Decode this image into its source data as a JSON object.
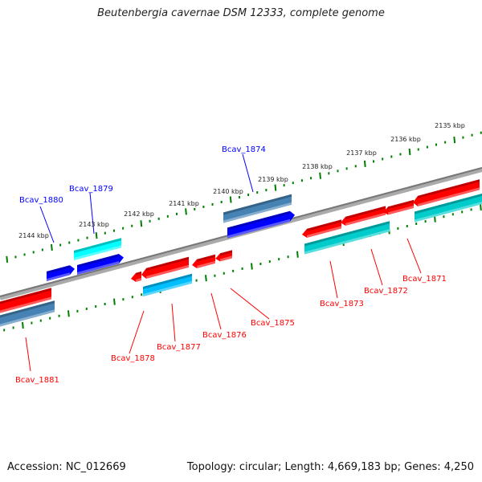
{
  "title": "Beutenbergia cavernae DSM 12333, complete genome",
  "footer": {
    "accession": "Accession: NC_012669",
    "topology": "Topology: circular; Length: 4,669,183 bp; Genes: 4,250"
  },
  "kbp_labels": [
    "2144 kbp",
    "2143 kbp",
    "2142 kbp",
    "2141 kbp",
    "2140 kbp",
    "2139 kbp",
    "2138 kbp",
    "2137 kbp",
    "2136 kbp",
    "2135 kbp"
  ],
  "forward_genes": [
    "Bcav_1880",
    "Bcav_1879",
    "Bcav_1874"
  ],
  "reverse_genes": [
    "Bcav_1881",
    "Bcav_1878",
    "Bcav_1877",
    "Bcav_1876",
    "Bcav_1875",
    "Bcav_1873",
    "Bcav_1872",
    "Bcav_1871"
  ],
  "colors": {
    "forward_label": "#0000ff",
    "reverse_label": "#ff0000",
    "backbone": "#888888",
    "ticks": "#008000",
    "cds_forward": "#0000ff",
    "cds_reverse": "#ff0000",
    "gene_cyan": "#00ffff",
    "gene_steel": "#4682b4",
    "gene_sky": "#00bfff",
    "gene_teal": "#00cccc"
  }
}
